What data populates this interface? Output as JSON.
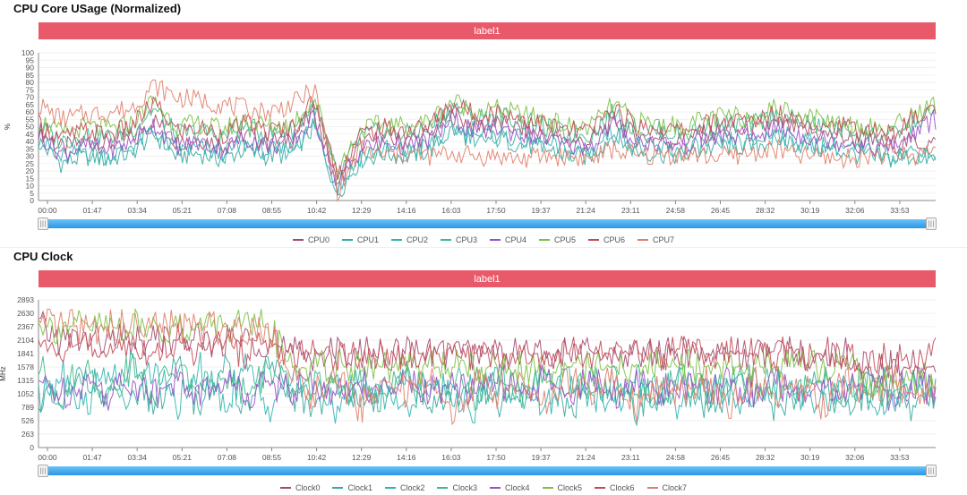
{
  "colors": {
    "banner": "#e8596a",
    "slider": "#2a97e6",
    "series": [
      "#a24a6e",
      "#3aa8a0",
      "#2fb5b0",
      "#3db98d",
      "#9b4fc6",
      "#7ac143",
      "#c24a56",
      "#e07e68"
    ]
  },
  "chart_data": [
    {
      "type": "line",
      "title": "CPU Core USage (Normalized)",
      "banner_label": "label1",
      "ylabel": "%",
      "ylim": [
        0,
        100
      ],
      "yticks": [
        "0",
        "5",
        "10",
        "15",
        "20",
        "25",
        "30",
        "35",
        "40",
        "45",
        "50",
        "55",
        "60",
        "65",
        "70",
        "75",
        "80",
        "85",
        "90",
        "95",
        "100"
      ],
      "xticks": [
        "00:00",
        "01:47",
        "03:34",
        "05:21",
        "07:08",
        "08:55",
        "10:42",
        "12:29",
        "14:16",
        "16:03",
        "17:50",
        "19:37",
        "21:24",
        "23:11",
        "24:58",
        "26:45",
        "28:32",
        "30:19",
        "32:06",
        "33:53"
      ],
      "slider_handle_glyph": "|||",
      "series": [
        {
          "name": "CPU0",
          "values": [
            48,
            35,
            40,
            38,
            42,
            55,
            40,
            42,
            38,
            45,
            40,
            42,
            60,
            10,
            38,
            42,
            40,
            44,
            58,
            50,
            52,
            48,
            45,
            40,
            40,
            55,
            43,
            42,
            40,
            45,
            47,
            46,
            52,
            48,
            45,
            43,
            40,
            38,
            40,
            38
          ]
        },
        {
          "name": "CPU1",
          "values": [
            40,
            25,
            30,
            28,
            32,
            45,
            30,
            32,
            28,
            35,
            30,
            32,
            50,
            5,
            28,
            32,
            30,
            34,
            48,
            40,
            42,
            38,
            35,
            30,
            30,
            45,
            33,
            32,
            30,
            35,
            37,
            36,
            42,
            38,
            35,
            33,
            30,
            28,
            30,
            28
          ]
        },
        {
          "name": "CPU2",
          "values": [
            42,
            28,
            33,
            30,
            35,
            48,
            33,
            35,
            31,
            38,
            33,
            35,
            52,
            8,
            30,
            35,
            33,
            37,
            50,
            43,
            45,
            41,
            38,
            33,
            33,
            48,
            36,
            35,
            33,
            38,
            40,
            39,
            45,
            41,
            38,
            36,
            33,
            31,
            33,
            31
          ]
        },
        {
          "name": "CPU3",
          "values": [
            50,
            40,
            45,
            43,
            47,
            62,
            45,
            47,
            43,
            50,
            45,
            47,
            65,
            15,
            43,
            47,
            45,
            49,
            64,
            56,
            58,
            54,
            50,
            45,
            45,
            60,
            48,
            47,
            45,
            50,
            52,
            51,
            58,
            54,
            50,
            48,
            45,
            43,
            52,
            60
          ]
        },
        {
          "name": "CPU4",
          "values": [
            45,
            32,
            37,
            35,
            39,
            52,
            37,
            39,
            35,
            42,
            37,
            39,
            56,
            10,
            35,
            39,
            37,
            41,
            55,
            47,
            49,
            45,
            42,
            37,
            37,
            52,
            40,
            39,
            37,
            42,
            44,
            43,
            49,
            45,
            42,
            40,
            37,
            35,
            45,
            55
          ]
        },
        {
          "name": "CPU5",
          "values": [
            55,
            45,
            50,
            48,
            52,
            68,
            50,
            52,
            48,
            55,
            50,
            52,
            70,
            20,
            48,
            52,
            50,
            54,
            68,
            60,
            62,
            58,
            55,
            50,
            50,
            65,
            53,
            52,
            50,
            55,
            57,
            56,
            63,
            59,
            55,
            53,
            50,
            48,
            58,
            65
          ]
        },
        {
          "name": "CPU6",
          "values": [
            52,
            42,
            47,
            45,
            49,
            66,
            47,
            49,
            45,
            52,
            47,
            49,
            68,
            18,
            45,
            49,
            47,
            51,
            66,
            58,
            60,
            56,
            52,
            47,
            47,
            63,
            50,
            49,
            47,
            52,
            54,
            53,
            60,
            56,
            52,
            50,
            47,
            45,
            55,
            62
          ]
        },
        {
          "name": "CPU7",
          "values": [
            65,
            55,
            58,
            60,
            62,
            78,
            70,
            68,
            65,
            62,
            60,
            65,
            75,
            5,
            35,
            30,
            32,
            30,
            32,
            30,
            30,
            28,
            30,
            30,
            28,
            35,
            30,
            30,
            32,
            30,
            30,
            32,
            35,
            30,
            30,
            28,
            30,
            32,
            30,
            35
          ]
        }
      ],
      "legend": [
        "CPU0",
        "CPU1",
        "CPU2",
        "CPU3",
        "CPU4",
        "CPU5",
        "CPU6",
        "CPU7"
      ]
    },
    {
      "type": "line",
      "title": "CPU Clock",
      "banner_label": "label1",
      "ylabel": "MHz",
      "ylim": [
        0,
        2893
      ],
      "yticks": [
        "0",
        "263",
        "526",
        "789",
        "1052",
        "1315",
        "1578",
        "1841",
        "2104",
        "2367",
        "2630",
        "2893"
      ],
      "xticks": [
        "00:00",
        "01:47",
        "03:34",
        "05:21",
        "07:08",
        "08:55",
        "10:42",
        "12:29",
        "14:16",
        "16:03",
        "17:50",
        "19:37",
        "21:24",
        "23:11",
        "24:58",
        "26:45",
        "28:32",
        "30:19",
        "32:06",
        "33:53"
      ],
      "slider_handle_glyph": "|||",
      "series": [
        {
          "name": "Clock0",
          "values": [
            2367,
            2104,
            2104,
            2104,
            2104,
            2104,
            2104,
            2104,
            2104,
            2104,
            2104,
            1841,
            1841,
            1841,
            1841,
            1841,
            1841,
            1841,
            1841,
            1841,
            1841,
            1841,
            1841,
            1841,
            1841,
            1841,
            1841,
            1841,
            1841,
            1841,
            1841,
            1841,
            1841,
            1841,
            1841,
            1841,
            1578,
            1578,
            1578,
            1578
          ]
        },
        {
          "name": "Clock1",
          "values": [
            1052,
            789,
            1578,
            789,
            1578,
            789,
            1578,
            789,
            1578,
            789,
            1578,
            1052,
            789,
            1315,
            789,
            1052,
            1315,
            789,
            1052,
            1315,
            789,
            1052,
            1315,
            789,
            1052,
            1315,
            789,
            1052,
            1315,
            789,
            1052,
            1315,
            789,
            1052,
            1315,
            789,
            1052,
            1315,
            789,
            1052
          ]
        },
        {
          "name": "Clock2",
          "values": [
            789,
            1578,
            789,
            1578,
            789,
            1578,
            789,
            1578,
            789,
            1578,
            789,
            1315,
            1052,
            789,
            1315,
            1052,
            789,
            1315,
            1052,
            789,
            1315,
            1052,
            789,
            1315,
            1052,
            789,
            1315,
            1052,
            789,
            1315,
            1052,
            789,
            1315,
            1052,
            789,
            1315,
            1052,
            789,
            1315,
            1052
          ]
        },
        {
          "name": "Clock3",
          "values": [
            1578,
            1052,
            1578,
            1052,
            1578,
            1052,
            1578,
            1052,
            1578,
            1052,
            1578,
            1052,
            1315,
            1052,
            1315,
            1052,
            1315,
            1052,
            1315,
            1052,
            1315,
            1052,
            1315,
            1052,
            1315,
            1052,
            1315,
            1052,
            1315,
            1052,
            1315,
            1052,
            1315,
            1052,
            1315,
            1052,
            1315,
            1052,
            1315,
            1052
          ]
        },
        {
          "name": "Clock4",
          "values": [
            1315,
            1052,
            1315,
            1052,
            1315,
            1052,
            1315,
            1052,
            1315,
            1052,
            1315,
            1052,
            1315,
            1052,
            1315,
            1052,
            1315,
            1052,
            1315,
            1052,
            1315,
            1052,
            1315,
            1052,
            1315,
            1052,
            1315,
            1052,
            1315,
            1052,
            1315,
            1052,
            1315,
            1052,
            1315,
            1052,
            1315,
            1052,
            1315,
            1052
          ]
        },
        {
          "name": "Clock5",
          "values": [
            2367,
            2367,
            2367,
            2367,
            2367,
            2367,
            2367,
            2367,
            2367,
            2367,
            2367,
            1578,
            1578,
            1578,
            1578,
            1578,
            1578,
            1578,
            1578,
            1578,
            1578,
            1578,
            1578,
            1578,
            1578,
            1578,
            1578,
            1578,
            1578,
            1578,
            1578,
            1578,
            1578,
            1578,
            1578,
            1578,
            1315,
            1315,
            1315,
            1315
          ]
        },
        {
          "name": "Clock6",
          "values": [
            2104,
            1841,
            2104,
            1841,
            2104,
            1841,
            2104,
            1841,
            2104,
            1841,
            2104,
            1841,
            1841,
            1841,
            1841,
            1841,
            1841,
            1841,
            1841,
            1841,
            1841,
            1841,
            1841,
            1841,
            1841,
            1841,
            1841,
            1841,
            1841,
            1841,
            1841,
            1841,
            1841,
            1841,
            1841,
            1841,
            1578,
            1841,
            1578,
            1841
          ]
        },
        {
          "name": "Clock7",
          "values": [
            2367,
            2367,
            2367,
            2367,
            2367,
            2367,
            2367,
            2367,
            2367,
            2367,
            2367,
            1315,
            1052,
            1315,
            789,
            1315,
            1052,
            1315,
            789,
            1315,
            1052,
            1315,
            789,
            1315,
            1052,
            1315,
            789,
            1315,
            1052,
            1315,
            789,
            1315,
            1052,
            1315,
            789,
            1315,
            1052,
            1315,
            1052,
            1315
          ]
        }
      ],
      "legend": [
        "Clock0",
        "Clock1",
        "Clock2",
        "Clock3",
        "Clock4",
        "Clock5",
        "Clock6",
        "Clock7"
      ]
    }
  ]
}
